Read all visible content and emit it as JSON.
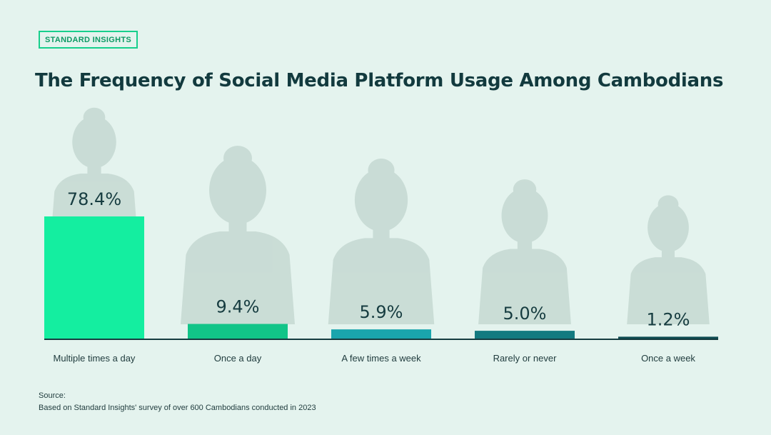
{
  "brand": "STANDARD INSIGHTS",
  "source_label": "Source:",
  "source_text": "Based on Standard Insights' survey of over 600 Cambodians conducted in 2023",
  "chart_data": {
    "type": "bar",
    "title": "The Frequency of Social Media Platform Usage Among Cambodians",
    "xlabel": "",
    "ylabel": "",
    "ylim": [
      0,
      78.4
    ],
    "grid": false,
    "categories": [
      "Multiple times a day",
      "Once a day",
      "A few times a week",
      "Rarely or never",
      "Once a week"
    ],
    "values": [
      78.4,
      9.4,
      5.9,
      5.0,
      1.2
    ],
    "data_labels": [
      "78.4%",
      "9.4%",
      "5.9%",
      "5.0%",
      "1.2%"
    ],
    "colors": [
      "#14eea0",
      "#12c488",
      "#1aa5ad",
      "#137a80",
      "#0e4c52"
    ]
  }
}
